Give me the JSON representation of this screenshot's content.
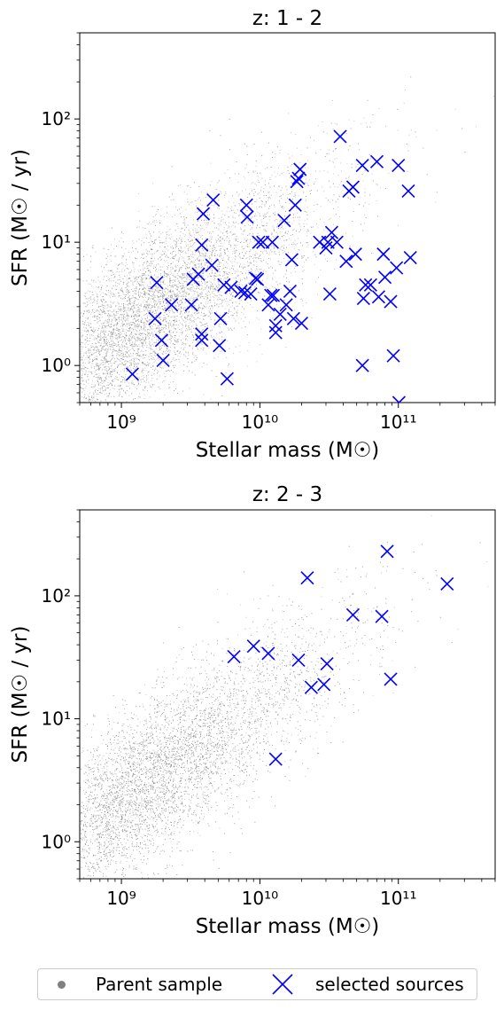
{
  "chart_data": [
    {
      "type": "scatter",
      "title": "z: 1 - 2",
      "xlabel": "Stellar mass (M☉)",
      "ylabel": "SFR (M☉ / yr)",
      "xscale": "log",
      "yscale": "log",
      "xlim": [
        500000000,
        500000000000
      ],
      "ylim": [
        0.5,
        500
      ],
      "xticks": [
        {
          "value": 1000000000,
          "label": "10⁹"
        },
        {
          "value": 10000000000,
          "label": "10¹⁰"
        },
        {
          "value": 100000000000,
          "label": "10¹¹"
        }
      ],
      "yticks": [
        {
          "value": 1,
          "label": "10⁰"
        },
        {
          "value": 10,
          "label": "10¹"
        },
        {
          "value": 100,
          "label": "10²"
        }
      ],
      "series": [
        {
          "name": "selected sources",
          "marker": "x",
          "color": "#0000ff",
          "points": [
            [
              1200000000.0,
              0.85
            ],
            [
              1800000000.0,
              4.7
            ],
            [
              1750000000.0,
              2.4
            ],
            [
              1950000000.0,
              1.6
            ],
            [
              2000000000.0,
              1.1
            ],
            [
              2300000000.0,
              3.1
            ],
            [
              3200000000.0,
              3.1
            ],
            [
              3300000000.0,
              5.0
            ],
            [
              3600000000.0,
              5.5
            ],
            [
              3800000000.0,
              9.5
            ],
            [
              3800000000.0,
              1.8
            ],
            [
              3800000000.0,
              1.6
            ],
            [
              3900000000.0,
              17
            ],
            [
              4500000000.0,
              6.5
            ],
            [
              4600000000.0,
              22
            ],
            [
              5100000000.0,
              1.45
            ],
            [
              5200000000.0,
              2.4
            ],
            [
              5500000000.0,
              4.5
            ],
            [
              5800000000.0,
              0.78
            ],
            [
              6200000000.0,
              4.3
            ],
            [
              7300000000.0,
              4.0
            ],
            [
              7800000000.0,
              3.9
            ],
            [
              8000000000.0,
              20
            ],
            [
              8100000000.0,
              16
            ],
            [
              8600000000.0,
              3.8
            ],
            [
              9300000000.0,
              5.1
            ],
            [
              9600000000.0,
              5.0
            ],
            [
              9800000000.0,
              10
            ],
            [
              10500000000.0,
              10
            ],
            [
              11500000000.0,
              3.1
            ],
            [
              12000000000.0,
              3.7
            ],
            [
              12300000000.0,
              10
            ],
            [
              12500000000.0,
              3.7
            ],
            [
              13000000000.0,
              2.1
            ],
            [
              13000000000.0,
              1.85
            ],
            [
              14000000000.0,
              2.6
            ],
            [
              15000000000.0,
              15
            ],
            [
              15500000000.0,
              3.1
            ],
            [
              16500000000.0,
              4.0
            ],
            [
              17000000000.0,
              7.2
            ],
            [
              17500000000.0,
              2.4
            ],
            [
              18000000000.0,
              20
            ],
            [
              18500000000.0,
              31
            ],
            [
              19000000000.0,
              33
            ],
            [
              19500000000.0,
              39
            ],
            [
              20000000000.0,
              2.2
            ],
            [
              27000000000.0,
              10
            ],
            [
              30000000000.0,
              9.0
            ],
            [
              31000000000.0,
              10
            ],
            [
              32000000000.0,
              3.8
            ],
            [
              33000000000.0,
              12
            ],
            [
              36000000000.0,
              10
            ],
            [
              38000000000.0,
              72
            ],
            [
              42000000000.0,
              7.0
            ],
            [
              44000000000.0,
              26
            ],
            [
              47000000000.0,
              28
            ],
            [
              49000000000.0,
              8.0
            ],
            [
              55000000000.0,
              1.0
            ],
            [
              55000000000.0,
              42
            ],
            [
              56000000000.0,
              3.5
            ],
            [
              58000000000.0,
              4.5
            ],
            [
              63000000000.0,
              4.5
            ],
            [
              70000000000.0,
              45
            ],
            [
              72000000000.0,
              3.6
            ],
            [
              78000000000.0,
              8.0
            ],
            [
              80000000000.0,
              5.2
            ],
            [
              88000000000.0,
              3.3
            ],
            [
              92000000000.0,
              1.2
            ],
            [
              97000000000.0,
              6.2
            ],
            [
              100000000000.0,
              42
            ],
            [
              101000000000.0,
              0.5
            ],
            [
              118000000000.0,
              26
            ],
            [
              122000000000.0,
              7.5
            ]
          ]
        }
      ],
      "parent_sample": {
        "name": "Parent sample",
        "color": "#808080",
        "marker": "dot"
      }
    },
    {
      "type": "scatter",
      "title": "z: 2 - 3",
      "xlabel": "Stellar mass (M☉)",
      "ylabel": "SFR (M☉ / yr)",
      "xscale": "log",
      "yscale": "log",
      "xlim": [
        500000000,
        500000000000
      ],
      "ylim": [
        0.5,
        500
      ],
      "xticks": [
        {
          "value": 1000000000,
          "label": "10⁹"
        },
        {
          "value": 10000000000,
          "label": "10¹⁰"
        },
        {
          "value": 100000000000,
          "label": "10¹¹"
        }
      ],
      "yticks": [
        {
          "value": 1,
          "label": "10⁰"
        },
        {
          "value": 10,
          "label": "10¹"
        },
        {
          "value": 100,
          "label": "10²"
        }
      ],
      "series": [
        {
          "name": "selected sources",
          "marker": "x",
          "color": "#0000ff",
          "points": [
            [
              6500000000.0,
              32
            ],
            [
              9000000000.0,
              39
            ],
            [
              11500000000.0,
              34
            ],
            [
              13000000000.0,
              4.7
            ],
            [
              19000000000.0,
              30
            ],
            [
              22000000000.0,
              140
            ],
            [
              23500000000.0,
              18
            ],
            [
              29000000000.0,
              19
            ],
            [
              30500000000.0,
              28
            ],
            [
              47000000000.0,
              70
            ],
            [
              76000000000.0,
              68
            ],
            [
              83000000000.0,
              230
            ],
            [
              88000000000.0,
              21
            ],
            [
              225000000000.0,
              125
            ]
          ]
        }
      ],
      "parent_sample": {
        "name": "Parent sample",
        "color": "#808080",
        "marker": "dot"
      }
    }
  ],
  "legend": {
    "items": [
      {
        "label": "Parent sample",
        "icon": "dot-icon",
        "color": "#808080"
      },
      {
        "label": "selected sources",
        "icon": "x-marker-icon",
        "color": "#0000ff"
      }
    ]
  }
}
